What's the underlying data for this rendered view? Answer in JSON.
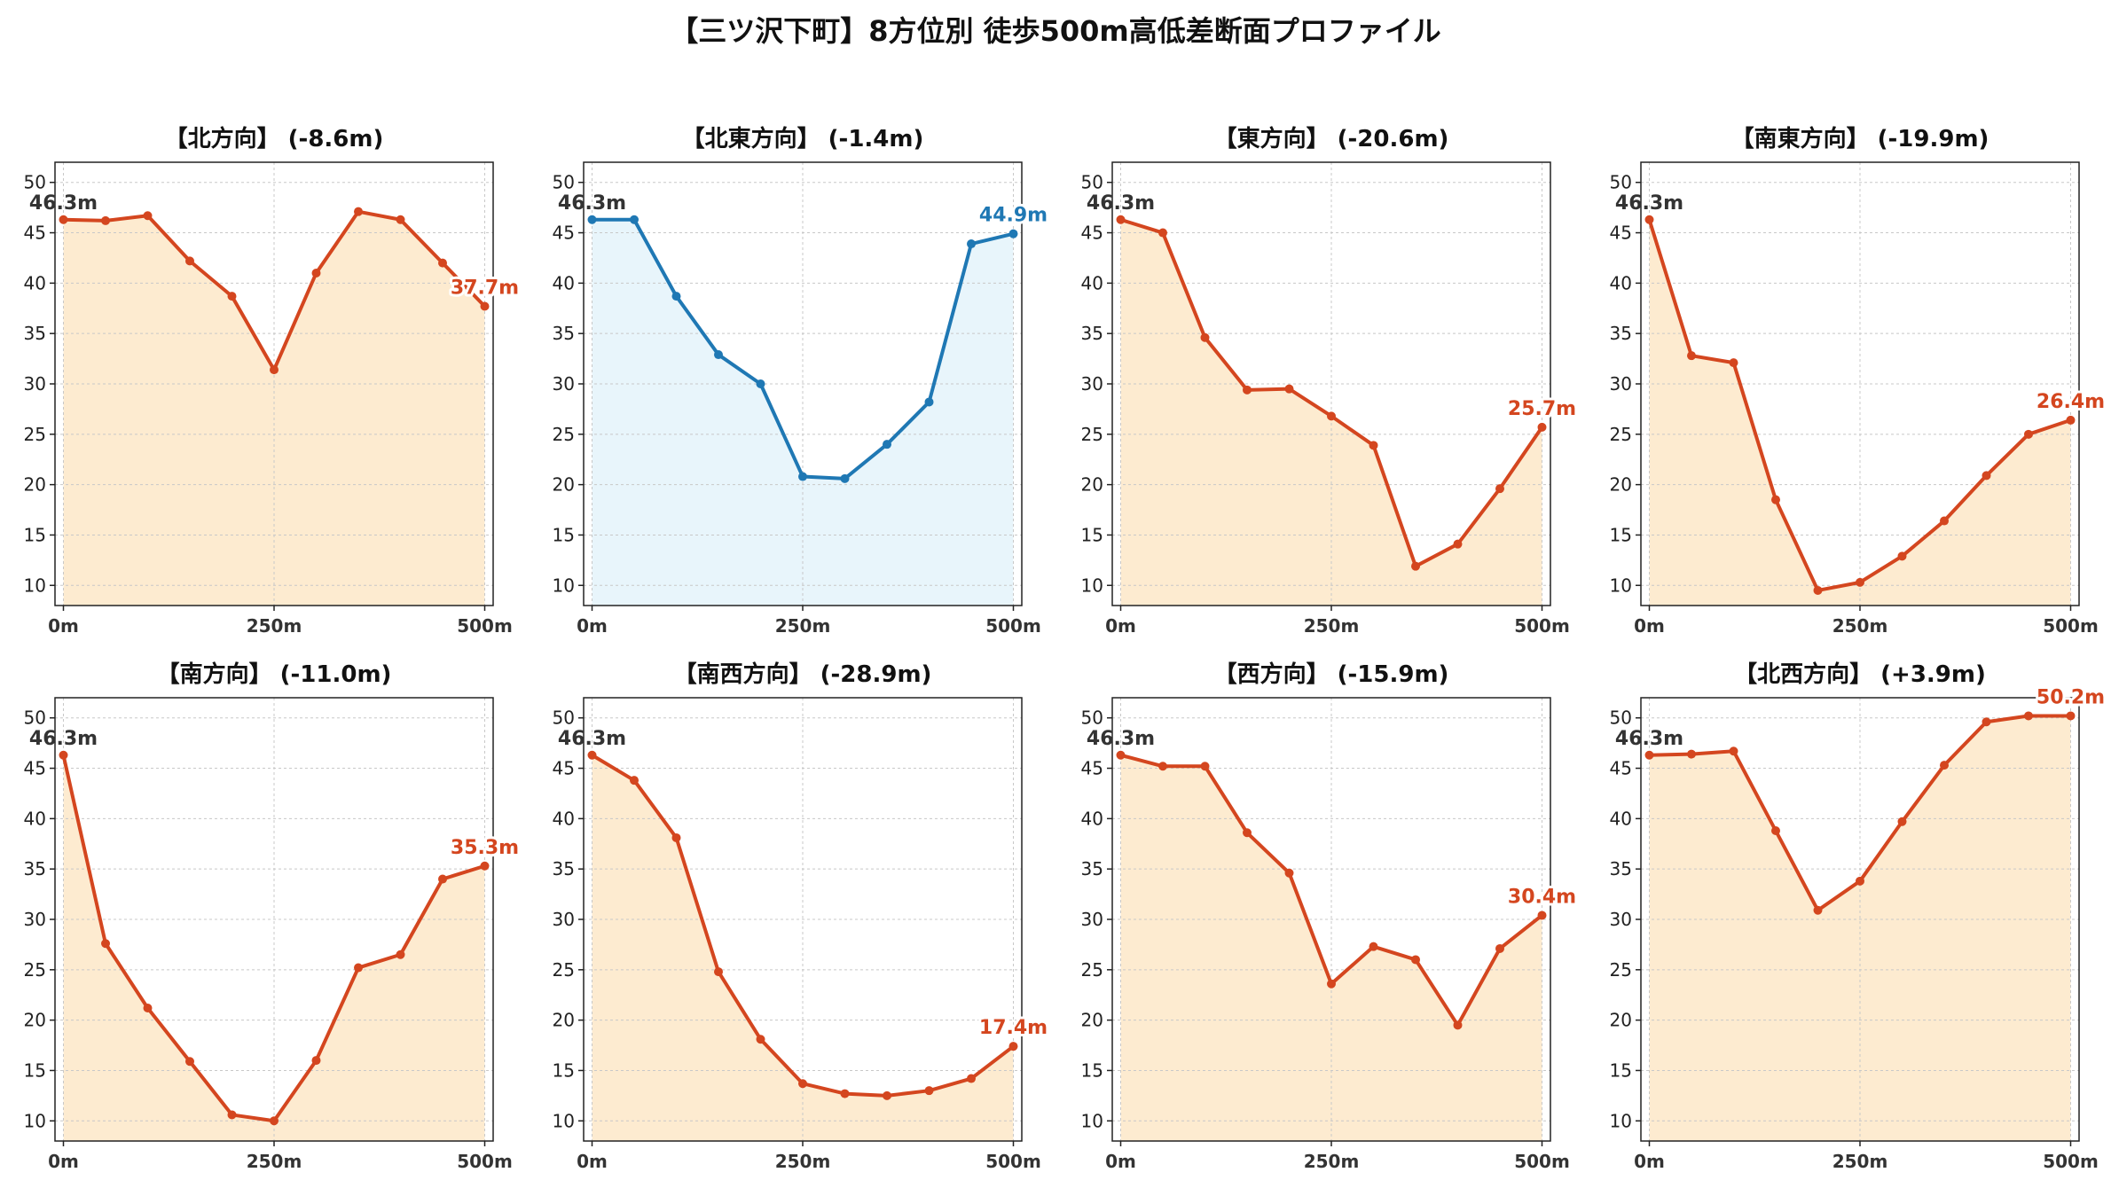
{
  "title": "【三ツ沢下町】8方位別 徒歩500m高低差断面プロファイル",
  "colors": {
    "down_line": "#d4461f",
    "down_fill": "#fdebd0",
    "up_line": "#1f78b4",
    "up_fill": "#e8f5fb",
    "start_label": "#333333",
    "axis": "#222222",
    "grid": "#c8c8c8"
  },
  "chart_data": [
    {
      "type": "line",
      "title": "【北方向】 (-8.6m)",
      "start_label": "46.3m",
      "end_label": "37.7m",
      "highlight": false,
      "x": [
        0,
        50,
        100,
        150,
        200,
        250,
        300,
        350,
        400,
        450,
        500
      ],
      "values": [
        46.3,
        46.2,
        46.7,
        42.2,
        38.7,
        31.4,
        41.0,
        47.1,
        46.3,
        42.0,
        37.7
      ],
      "xticks": [
        "0m",
        "250m",
        "500m"
      ],
      "yticks": [
        10,
        15,
        20,
        25,
        30,
        35,
        40,
        45,
        50
      ],
      "xlim": [
        -10,
        510
      ],
      "ylim": [
        8,
        52
      ],
      "grid": true
    },
    {
      "type": "line",
      "title": "【北東方向】 (-1.4m)",
      "start_label": "46.3m",
      "end_label": "44.9m",
      "highlight": true,
      "x": [
        0,
        50,
        100,
        150,
        200,
        250,
        300,
        350,
        400,
        450,
        500
      ],
      "values": [
        46.3,
        46.3,
        38.7,
        32.9,
        30.0,
        20.8,
        20.6,
        24.0,
        28.2,
        43.9,
        44.9
      ],
      "xticks": [
        "0m",
        "250m",
        "500m"
      ],
      "yticks": [
        10,
        15,
        20,
        25,
        30,
        35,
        40,
        45,
        50
      ],
      "xlim": [
        -10,
        510
      ],
      "ylim": [
        8,
        52
      ],
      "grid": true
    },
    {
      "type": "line",
      "title": "【東方向】 (-20.6m)",
      "start_label": "46.3m",
      "end_label": "25.7m",
      "highlight": false,
      "x": [
        0,
        50,
        100,
        150,
        200,
        250,
        300,
        350,
        400,
        450,
        500
      ],
      "values": [
        46.3,
        45.0,
        34.6,
        29.4,
        29.5,
        26.8,
        23.9,
        11.9,
        14.1,
        19.6,
        25.7
      ],
      "xticks": [
        "0m",
        "250m",
        "500m"
      ],
      "yticks": [
        10,
        15,
        20,
        25,
        30,
        35,
        40,
        45,
        50
      ],
      "xlim": [
        -10,
        510
      ],
      "ylim": [
        8,
        52
      ],
      "grid": true
    },
    {
      "type": "line",
      "title": "【南東方向】 (-19.9m)",
      "start_label": "46.3m",
      "end_label": "26.4m",
      "highlight": false,
      "x": [
        0,
        50,
        100,
        150,
        200,
        250,
        300,
        350,
        400,
        450,
        500
      ],
      "values": [
        46.3,
        32.8,
        32.1,
        18.5,
        9.5,
        10.3,
        12.9,
        16.4,
        20.9,
        25.0,
        26.4
      ],
      "xticks": [
        "0m",
        "250m",
        "500m"
      ],
      "yticks": [
        10,
        15,
        20,
        25,
        30,
        35,
        40,
        45,
        50
      ],
      "xlim": [
        -10,
        510
      ],
      "ylim": [
        8,
        52
      ],
      "grid": true
    },
    {
      "type": "line",
      "title": "【南方向】 (-11.0m)",
      "start_label": "46.3m",
      "end_label": "35.3m",
      "highlight": false,
      "x": [
        0,
        50,
        100,
        150,
        200,
        250,
        300,
        350,
        400,
        450,
        500
      ],
      "values": [
        46.3,
        27.6,
        21.2,
        15.9,
        10.6,
        10.0,
        16.0,
        25.2,
        26.5,
        34.0,
        35.3
      ],
      "xticks": [
        "0m",
        "250m",
        "500m"
      ],
      "yticks": [
        10,
        15,
        20,
        25,
        30,
        35,
        40,
        45,
        50
      ],
      "xlim": [
        -10,
        510
      ],
      "ylim": [
        8,
        52
      ],
      "grid": true
    },
    {
      "type": "line",
      "title": "【南西方向】 (-28.9m)",
      "start_label": "46.3m",
      "end_label": "17.4m",
      "highlight": false,
      "x": [
        0,
        50,
        100,
        150,
        200,
        250,
        300,
        350,
        400,
        450,
        500
      ],
      "values": [
        46.3,
        43.8,
        38.1,
        24.8,
        18.1,
        13.7,
        12.7,
        12.5,
        13.0,
        14.2,
        17.4
      ],
      "xticks": [
        "0m",
        "250m",
        "500m"
      ],
      "yticks": [
        10,
        15,
        20,
        25,
        30,
        35,
        40,
        45,
        50
      ],
      "xlim": [
        -10,
        510
      ],
      "ylim": [
        8,
        52
      ],
      "grid": true
    },
    {
      "type": "line",
      "title": "【西方向】 (-15.9m)",
      "start_label": "46.3m",
      "end_label": "30.4m",
      "highlight": false,
      "x": [
        0,
        50,
        100,
        150,
        200,
        250,
        300,
        350,
        400,
        450,
        500
      ],
      "values": [
        46.3,
        45.2,
        45.2,
        38.6,
        34.6,
        23.6,
        27.3,
        26.0,
        19.5,
        27.1,
        30.4
      ],
      "xticks": [
        "0m",
        "250m",
        "500m"
      ],
      "yticks": [
        10,
        15,
        20,
        25,
        30,
        35,
        40,
        45,
        50
      ],
      "xlim": [
        -10,
        510
      ],
      "ylim": [
        8,
        52
      ],
      "grid": true
    },
    {
      "type": "line",
      "title": "【北西方向】 (+3.9m)",
      "start_label": "46.3m",
      "end_label": "50.2m",
      "highlight": false,
      "x": [
        0,
        50,
        100,
        150,
        200,
        250,
        300,
        350,
        400,
        450,
        500
      ],
      "values": [
        46.3,
        46.4,
        46.7,
        38.8,
        30.9,
        33.8,
        39.7,
        45.3,
        49.6,
        50.2,
        50.2
      ],
      "xticks": [
        "0m",
        "250m",
        "500m"
      ],
      "yticks": [
        10,
        15,
        20,
        25,
        30,
        35,
        40,
        45,
        50
      ],
      "xlim": [
        -10,
        510
      ],
      "ylim": [
        8,
        52
      ],
      "grid": true
    }
  ]
}
